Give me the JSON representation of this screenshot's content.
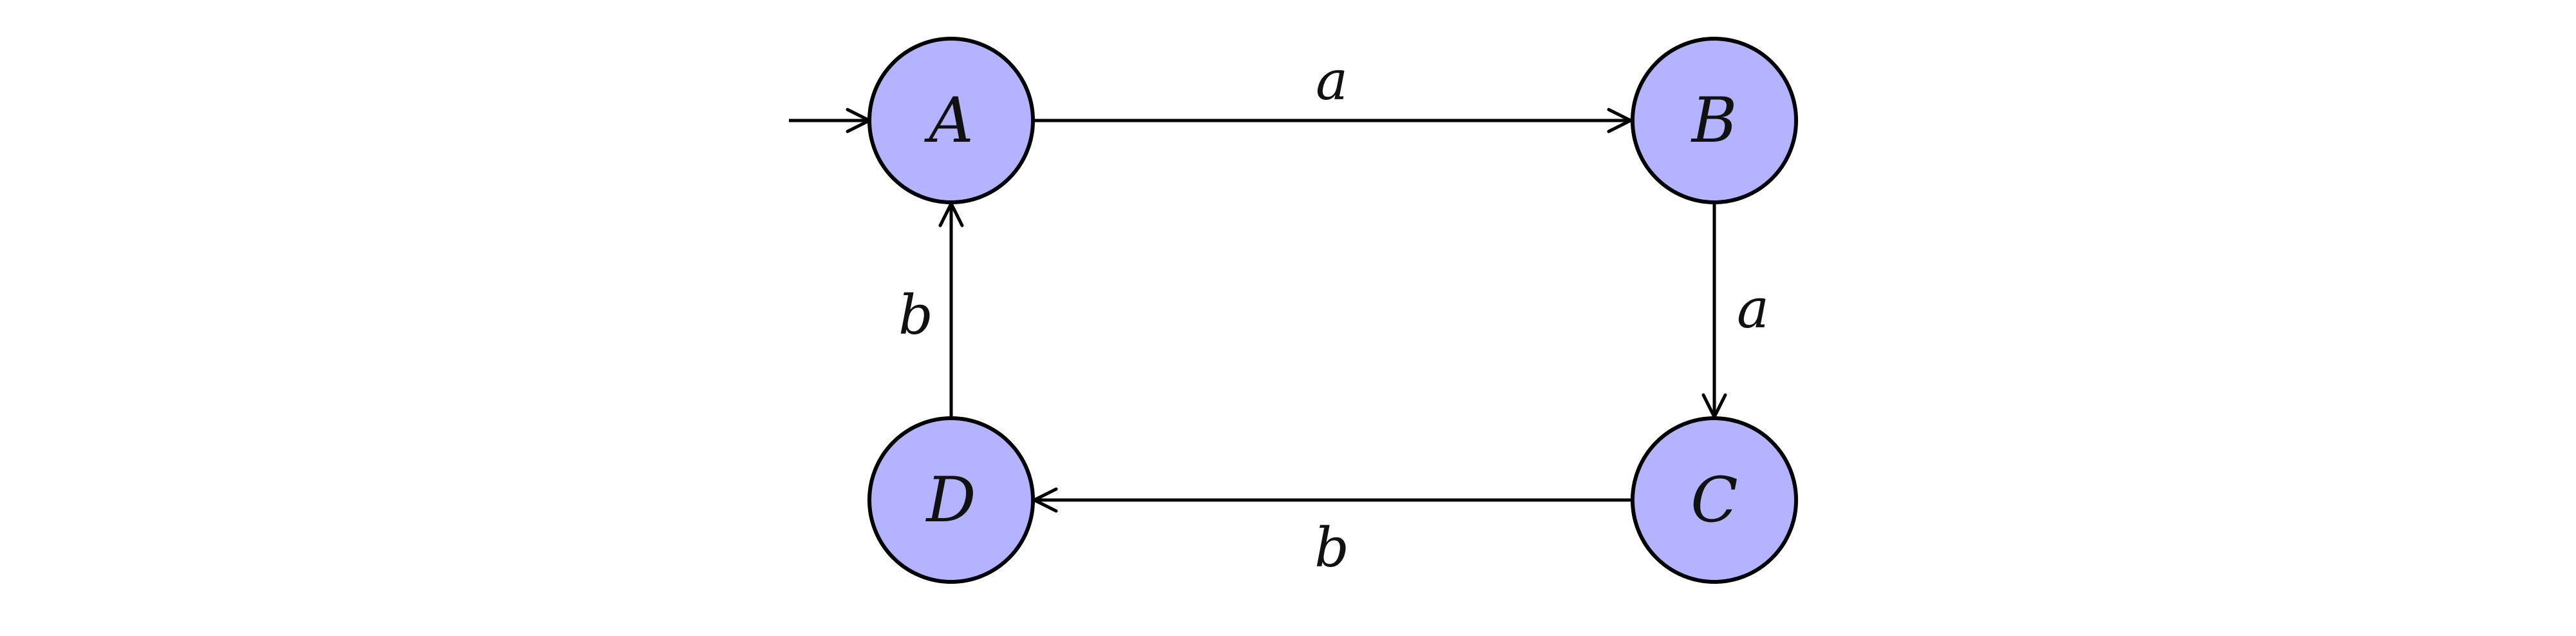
{
  "colors": {
    "state_fill": "#b3b3ff",
    "stroke": "#000000"
  },
  "states": [
    {
      "id": "A",
      "label": "A",
      "initial": true
    },
    {
      "id": "B",
      "label": "B"
    },
    {
      "id": "C",
      "label": "C"
    },
    {
      "id": "D",
      "label": "D"
    }
  ],
  "transitions": [
    {
      "from": "A",
      "to": "B",
      "label": "a"
    },
    {
      "from": "B",
      "to": "C",
      "label": "a"
    },
    {
      "from": "C",
      "to": "D",
      "label": "b"
    },
    {
      "from": "D",
      "to": "A",
      "label": "b"
    }
  ]
}
